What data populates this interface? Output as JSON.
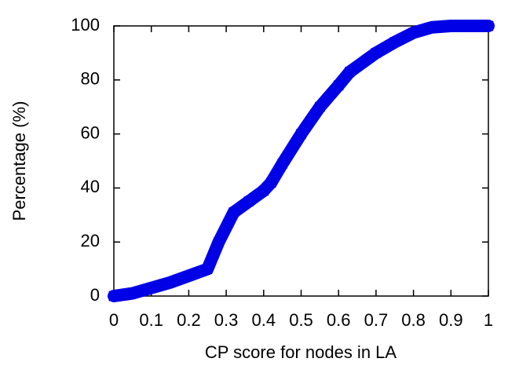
{
  "chart_data": {
    "type": "line",
    "xlabel": "CP score for nodes in LA",
    "ylabel": "Percentage (%)",
    "x": [
      0,
      0.05,
      0.1,
      0.15,
      0.2,
      0.25,
      0.28,
      0.32,
      0.36,
      0.4,
      0.42,
      0.45,
      0.5,
      0.55,
      0.6,
      0.63,
      0.7,
      0.75,
      0.8,
      0.85,
      0.9,
      0.95,
      1
    ],
    "series": [
      {
        "color": "#0000e6",
        "marker": "x",
        "values": [
          0,
          1,
          3,
          5,
          7.5,
          10,
          20,
          31,
          35,
          39,
          42,
          49,
          60,
          70,
          78,
          83,
          90,
          94,
          97.5,
          99.5,
          100,
          100,
          100
        ]
      }
    ],
    "xlim": [
      0,
      1
    ],
    "xticks": [
      0,
      0.1,
      0.2,
      0.3,
      0.4,
      0.5,
      0.6,
      0.7,
      0.8,
      0.9,
      1
    ],
    "ylim": [
      0,
      100
    ],
    "yticks": [
      0,
      20,
      40,
      60,
      80,
      100
    ]
  }
}
